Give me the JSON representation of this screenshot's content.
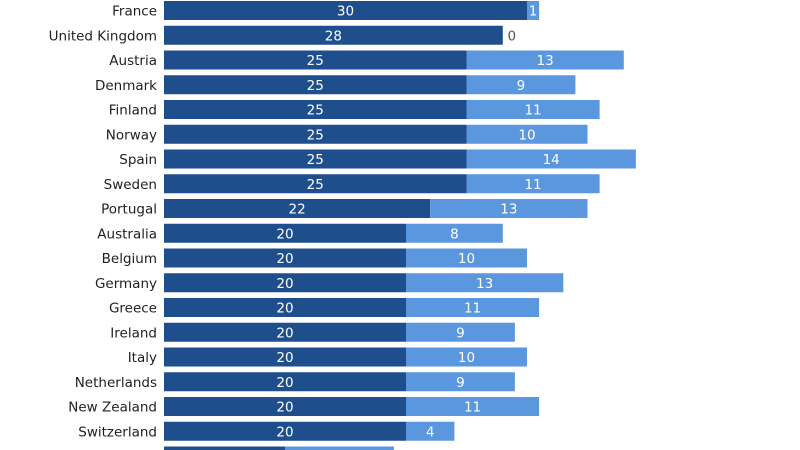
{
  "chart_data": {
    "type": "bar",
    "stacked": true,
    "orientation": "horizontal",
    "categories": [
      "France",
      "United Kingdom",
      "Austria",
      "Denmark",
      "Finland",
      "Norway",
      "Spain",
      "Sweden",
      "Portugal",
      "Australia",
      "Belgium",
      "Germany",
      "Greece",
      "Ireland",
      "Italy",
      "Netherlands",
      "New Zealand",
      "Switzerland",
      ""
    ],
    "series": [
      {
        "color": "#1f4e8c",
        "values": [
          30,
          28,
          25,
          25,
          25,
          25,
          25,
          25,
          22,
          20,
          20,
          20,
          20,
          20,
          20,
          20,
          20,
          20,
          10
        ]
      },
      {
        "color": "#5b97de",
        "values": [
          1,
          0,
          13,
          9,
          11,
          10,
          14,
          11,
          13,
          8,
          10,
          13,
          11,
          9,
          10,
          9,
          11,
          4,
          9
        ]
      }
    ],
    "value_labels": [
      [
        "30",
        "28",
        "25",
        "25",
        "25",
        "25",
        "25",
        "25",
        "22",
        "20",
        "20",
        "20",
        "20",
        "20",
        "20",
        "20",
        "20",
        "20",
        ""
      ],
      [
        "1",
        "0",
        "13",
        "9",
        "11",
        "10",
        "14",
        "11",
        "13",
        "8",
        "10",
        "13",
        "11",
        "9",
        "10",
        "9",
        "11",
        "4",
        ""
      ]
    ],
    "title": "",
    "xlabel": "",
    "ylabel": "",
    "xlim": [
      0,
      39
    ],
    "grid": false,
    "legend": "none",
    "label_colors": {
      "inside": "#ffffff",
      "zero": "#555555"
    }
  }
}
